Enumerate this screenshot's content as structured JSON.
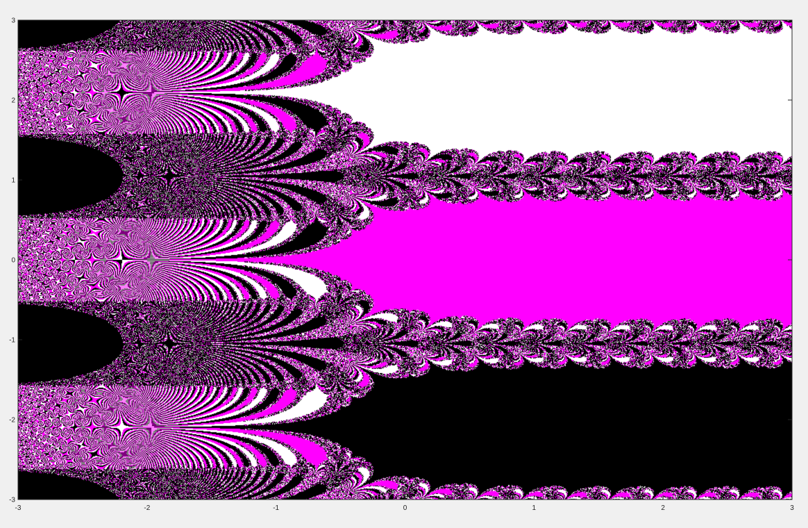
{
  "chart_data": {
    "type": "heatmap",
    "description_kind": "basins of attraction (Newton fractal for cubic roots of z^3 = 1 style), three colors",
    "title": "",
    "xlabel": "",
    "ylabel": "",
    "xlim": [
      -3,
      3
    ],
    "ylim": [
      -3,
      3
    ],
    "x_ticks": [
      -3,
      -2,
      -1,
      0,
      1,
      2,
      3
    ],
    "y_ticks": [
      -3,
      -2,
      -1,
      0,
      1,
      2,
      3
    ],
    "x_tick_labels": [
      "-3",
      "-2",
      "-1",
      "0",
      "1",
      "2",
      "3"
    ],
    "y_tick_labels": [
      "-3",
      "-2",
      "-1",
      "0",
      "1",
      "2",
      "3"
    ],
    "grid": false,
    "legend": "none",
    "colors": {
      "basin_a": "#ff00ff",
      "basin_b": "#ffffff",
      "basin_c": "#000000",
      "figure_background": "#f0f0f0",
      "axis_color": "#262626"
    }
  }
}
